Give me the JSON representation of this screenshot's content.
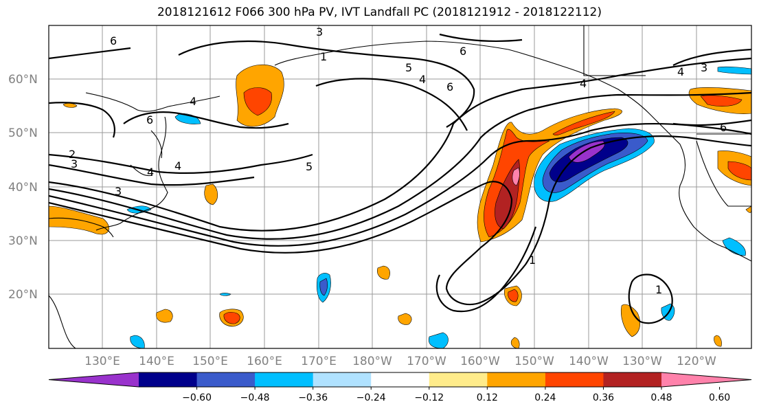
{
  "title": "2018121612 F066 300 hPa PV, IVT Landfall PC (2018121912 - 2018122112)",
  "map": {
    "lat_labels": [
      "60°N",
      "50°N",
      "40°N",
      "30°N",
      "20°N"
    ],
    "lon_labels": [
      "130°E",
      "140°E",
      "150°E",
      "160°E",
      "170°E",
      "180°W",
      "170°W",
      "160°W",
      "150°W",
      "140°W",
      "130°W",
      "120°W"
    ],
    "contour_labels": [
      "6",
      "4",
      "6",
      "2",
      "3",
      "4",
      "4",
      "3",
      "3",
      "1",
      "5",
      "4",
      "6",
      "6",
      "5",
      "1",
      "4",
      "4",
      "3",
      "6",
      "1"
    ]
  },
  "colorbar": {
    "ticks": [
      "−0.60",
      "−0.48",
      "−0.36",
      "−0.24",
      "−0.12",
      "0.12",
      "0.24",
      "0.36",
      "0.48",
      "0.60"
    ],
    "colors": [
      "#9932CC",
      "#00008B",
      "#3A5BCB",
      "#00BFFF",
      "#B0E2FF",
      "#FFFFFF",
      "#FFEC8B",
      "#FFA500",
      "#FF4500",
      "#B22222",
      "#FF82AB"
    ]
  }
}
